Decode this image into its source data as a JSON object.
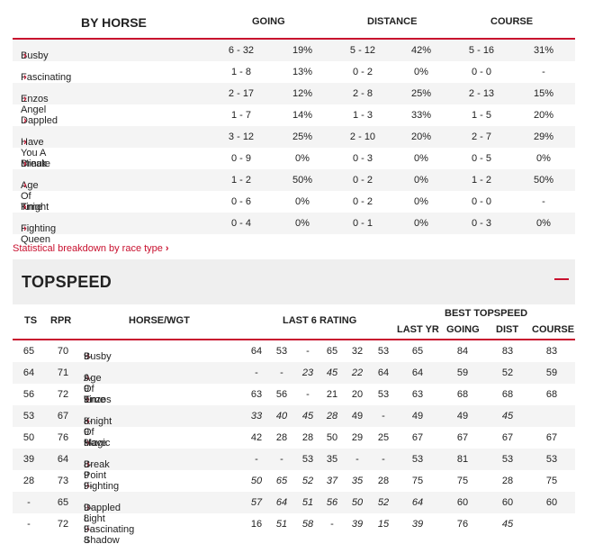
{
  "by_horse": {
    "title": "BY HORSE",
    "headers": {
      "going": "GOING",
      "distance": "DISTANCE",
      "course": "COURSE"
    },
    "rows": [
      {
        "name": "Busby",
        "going": "6 - 32",
        "going_pct": "19%",
        "distance": "5 - 12",
        "distance_pct": "42%",
        "course": "5 - 16",
        "course_pct": "31%"
      },
      {
        "name": "Fascinating Shadow",
        "going": "1 - 8",
        "going_pct": "13%",
        "distance": "0 - 2",
        "distance_pct": "0%",
        "course": "0 - 0",
        "course_pct": "-"
      },
      {
        "name": "Enzos Angel",
        "going": "2 - 17",
        "going_pct": "12%",
        "distance": "2 - 8",
        "distance_pct": "25%",
        "course": "2 - 13",
        "course_pct": "15%"
      },
      {
        "name": "Dappled Light",
        "going": "1 - 7",
        "going_pct": "14%",
        "distance": "1 - 3",
        "distance_pct": "33%",
        "course": "1 - 5",
        "course_pct": "20%"
      },
      {
        "name": "Have You A Minute",
        "going": "3 - 12",
        "going_pct": "25%",
        "distance": "2 - 10",
        "distance_pct": "20%",
        "course": "2 - 7",
        "course_pct": "29%"
      },
      {
        "name": "Break Point",
        "going": "0 - 9",
        "going_pct": "0%",
        "distance": "0 - 3",
        "distance_pct": "0%",
        "course": "0 - 5",
        "course_pct": "0%"
      },
      {
        "name": "Age Of Time",
        "going": "1 - 2",
        "going_pct": "50%",
        "distance": "0 - 2",
        "distance_pct": "0%",
        "course": "1 - 2",
        "course_pct": "50%"
      },
      {
        "name": "Knight Of Magic",
        "going": "0 - 6",
        "going_pct": "0%",
        "distance": "0 - 2",
        "distance_pct": "0%",
        "course": "0 - 0",
        "course_pct": "-"
      },
      {
        "name": "Fighting Queen",
        "going": "0 - 4",
        "going_pct": "0%",
        "distance": "0 - 1",
        "distance_pct": "0%",
        "course": "0 - 3",
        "course_pct": "0%"
      }
    ]
  },
  "breakdown_link": "Statistical breakdown by race type",
  "topspeed": {
    "title": "TOPSPEED",
    "headers": {
      "ts": "TS",
      "rpr": "RPR",
      "horse_wgt": "HORSE/WGT",
      "last6": "LAST 6 RATING",
      "best": "BEST TOPSPEED",
      "last_yr": "LAST YR",
      "going": "GOING",
      "dist": "DIST",
      "course": "COURSE"
    },
    "rows": [
      {
        "ts": "65",
        "rpr": "70",
        "name": "Busby",
        "wgt": "9-1",
        "last6": [
          "64",
          "53",
          "-",
          "65",
          "32",
          "53"
        ],
        "last_yr": "65",
        "going": "84",
        "dist": "83",
        "course": "83"
      },
      {
        "ts": "64",
        "rpr": "71",
        "name": "Age Of Time",
        "wgt": "9-9",
        "last6": [
          "-",
          "-",
          "23",
          "45",
          "22",
          "64"
        ],
        "last_yr": "64",
        "going": "59",
        "dist": "52",
        "course": "59"
      },
      {
        "ts": "56",
        "rpr": "72",
        "name": "Enzos Angel",
        "wgt": "9-3",
        "last6": [
          "63",
          "56",
          "-",
          "21",
          "20",
          "53"
        ],
        "last_yr": "63",
        "going": "68",
        "dist": "68",
        "course": "68"
      },
      {
        "ts": "53",
        "rpr": "67",
        "name": "Knight Of Magic",
        "wgt": "8-9",
        "last6": [
          "33",
          "40",
          "45",
          "28",
          "49",
          "-"
        ],
        "last_yr": "49",
        "going": "49",
        "dist": "45",
        "course": ""
      },
      {
        "ts": "50",
        "rpr": "76",
        "name": "Have You A Minute",
        "wgt": "9-4",
        "last6": [
          "42",
          "28",
          "28",
          "50",
          "29",
          "25"
        ],
        "last_yr": "67",
        "going": "67",
        "dist": "67",
        "course": "67"
      },
      {
        "ts": "39",
        "rpr": "64",
        "name": "Break Point",
        "wgt": "8-9",
        "last6": [
          "-",
          "-",
          "53",
          "35",
          "-",
          "-"
        ],
        "last_yr": "53",
        "going": "81",
        "dist": "53",
        "course": "53"
      },
      {
        "ts": "28",
        "rpr": "73",
        "name": "Fighting Queen",
        "wgt": "9-3",
        "last6": [
          "50",
          "65",
          "52",
          "37",
          "35",
          "28"
        ],
        "last_yr": "75",
        "going": "75",
        "dist": "28",
        "course": "75"
      },
      {
        "ts": "-",
        "rpr": "65",
        "name": "Dappled Light",
        "wgt": "9-8",
        "last6": [
          "57",
          "64",
          "51",
          "56",
          "50",
          "52"
        ],
        "last_yr": "64",
        "going": "60",
        "dist": "60",
        "course": "60"
      },
      {
        "ts": "-",
        "rpr": "72",
        "name": "Fascinating Shadow",
        "wgt": "9-8",
        "last6": [
          "16",
          "51",
          "58",
          "-",
          "39",
          "15"
        ],
        "last_yr": "39",
        "going": "76",
        "dist": "45",
        "course": ""
      }
    ]
  }
}
